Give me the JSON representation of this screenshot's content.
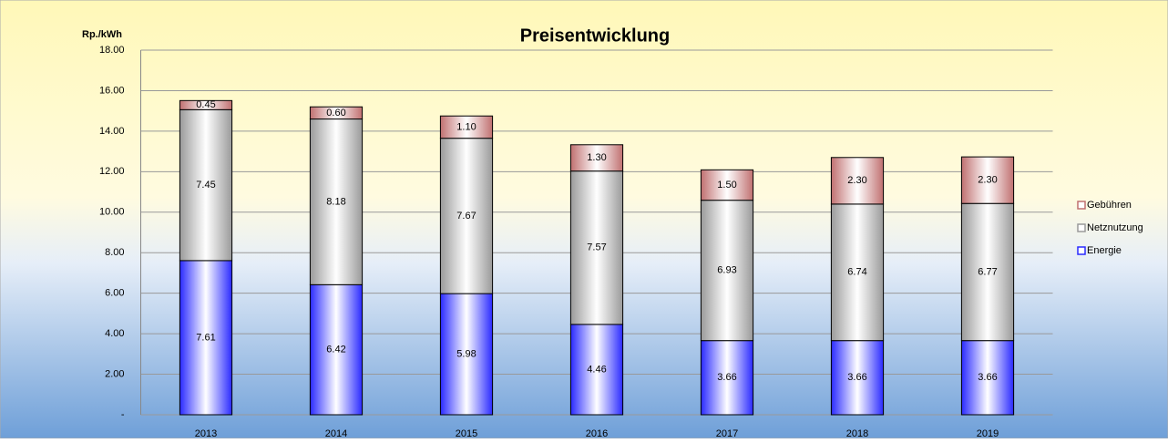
{
  "chart_data": {
    "type": "stacked_bar",
    "title": "Preisentwicklung",
    "y_label": "Rp./kWh",
    "categories": [
      "2013",
      "2014",
      "2015",
      "2016",
      "2017",
      "2018",
      "2019"
    ],
    "series": [
      {
        "name": "Energie",
        "color": "#2a2aff",
        "values": [
          7.61,
          6.42,
          5.98,
          4.46,
          3.66,
          3.66,
          3.66
        ],
        "value_labels": [
          "7.61",
          "6.42",
          "5.98",
          "4.46",
          "3.66",
          "3.66",
          "3.66"
        ]
      },
      {
        "name": "Netznutzung",
        "color": "#9a9a9a",
        "values": [
          7.45,
          8.18,
          7.67,
          7.57,
          6.93,
          6.74,
          6.77
        ],
        "value_labels": [
          "7.45",
          "8.18",
          "7.67",
          "7.57",
          "6.93",
          "6.74",
          "6.77"
        ]
      },
      {
        "name": "Gebühren",
        "color": "#c07070",
        "values": [
          0.45,
          0.6,
          1.1,
          1.3,
          1.5,
          2.3,
          2.3
        ],
        "value_labels": [
          "0.45",
          "0.60",
          "1.10",
          "1.30",
          "1.50",
          "2.30",
          "2.30"
        ]
      }
    ],
    "ylim": [
      0,
      18
    ],
    "yticks": [
      {
        "value": 0,
        "label": "-"
      },
      {
        "value": 2,
        "label": "2.00"
      },
      {
        "value": 4,
        "label": "4.00"
      },
      {
        "value": 6,
        "label": "6.00"
      },
      {
        "value": 8,
        "label": "8.00"
      },
      {
        "value": 10,
        "label": "10.00"
      },
      {
        "value": 12,
        "label": "12.00"
      },
      {
        "value": 14,
        "label": "14.00"
      },
      {
        "value": 16,
        "label": "16.00"
      },
      {
        "value": 18,
        "label": "18.00"
      }
    ],
    "grid": true,
    "legend": "right"
  }
}
